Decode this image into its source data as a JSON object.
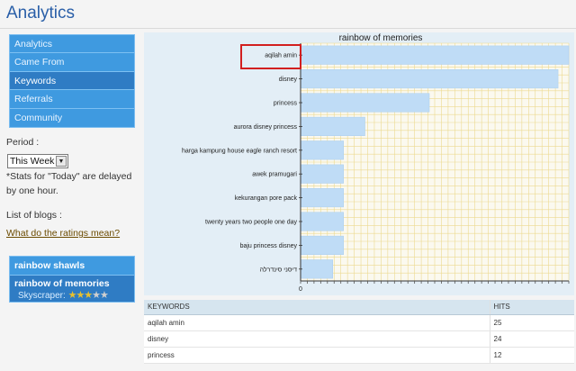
{
  "header": {
    "title": "Analytics"
  },
  "sidebar": {
    "items": [
      {
        "label": "Analytics"
      },
      {
        "label": "Came From"
      },
      {
        "label": "Keywords",
        "active": true
      },
      {
        "label": "Referrals"
      },
      {
        "label": "Community"
      }
    ],
    "period_label": "Period :",
    "period_value": "This Week",
    "stats_note": "*Stats for \"Today\" are delayed by one hour.",
    "blogs_label": "List of blogs :",
    "ratings_link": "What do the ratings mean?"
  },
  "blogs": [
    {
      "name": "rainbow shawls"
    },
    {
      "name": "rainbow of memories",
      "rating_label": "Skyscraper:",
      "stars": 3,
      "stars_max": 5
    }
  ],
  "chart_data": {
    "type": "bar",
    "orientation": "horizontal",
    "title": "rainbow of memories",
    "categories": [
      "aqilah amin",
      "disney",
      "princess",
      "aurora disney princess",
      "harga kampung house eagle ranch resort",
      "awek pramugari",
      "kekurangan pore pack",
      "twenty years two people one day",
      "baju princess disney",
      "דיסני סינדרלה"
    ],
    "values": [
      25,
      24,
      12,
      6,
      4,
      4,
      4,
      4,
      4,
      3
    ],
    "xlim": [
      0,
      25
    ],
    "x_tick_labels": [
      "0"
    ],
    "grid": true,
    "bar_color": "#bfdcf6",
    "grid_color": "#ecd98f",
    "highlighted_category": "aqilah amin"
  },
  "table": {
    "headers": [
      "KEYWORDS",
      "HITS"
    ],
    "rows": [
      [
        "aqilah amin",
        "25"
      ],
      [
        "disney",
        "24"
      ],
      [
        "princess",
        "12"
      ]
    ]
  }
}
